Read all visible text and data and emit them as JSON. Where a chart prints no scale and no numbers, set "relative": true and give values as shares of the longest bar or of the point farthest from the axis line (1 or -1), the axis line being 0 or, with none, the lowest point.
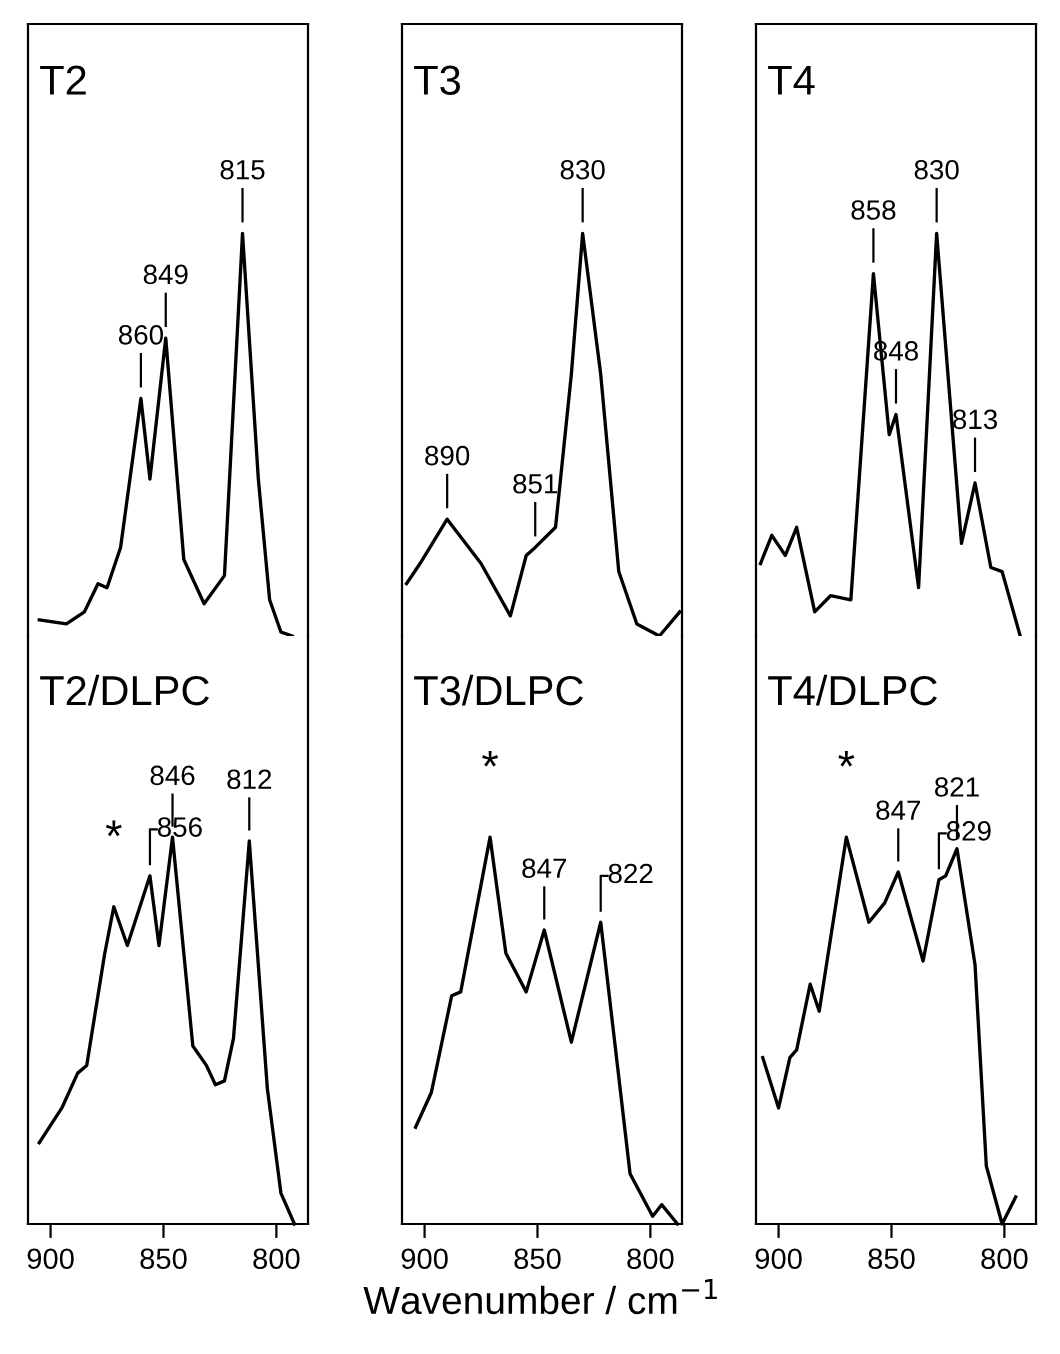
{
  "chart_data": [
    {
      "type": "line",
      "title": "T2",
      "relative": true,
      "xlim": [
        910,
        786
      ],
      "tick_labels": false,
      "series": [
        {
          "color": "#000000",
          "x": [
            905,
            893,
            885,
            879,
            875,
            869,
            860,
            856,
            849,
            841,
            832,
            823,
            815,
            808,
            803,
            798,
            793
          ],
          "values": [
            0.04,
            0.03,
            0.06,
            0.13,
            0.12,
            0.22,
            0.59,
            0.39,
            0.74,
            0.19,
            0.08,
            0.15,
            1,
            0.39,
            0.09,
            0.01,
            0
          ]
        }
      ],
      "annotations": [
        {
          "text": "860",
          "x": 860,
          "y": 0.59
        },
        {
          "text": "849",
          "x": 849,
          "y": 0.74
        },
        {
          "text": "815",
          "x": 815,
          "y": 1
        }
      ]
    },
    {
      "type": "line",
      "title": "T3",
      "relative": true,
      "xlim": [
        910,
        786
      ],
      "tick_labels": false,
      "series": [
        {
          "color": "#000000",
          "x": [
            908,
            902,
            890,
            875,
            862,
            855,
            851,
            842,
            835,
            830,
            822,
            814,
            806,
            796,
            787
          ],
          "values": [
            0.13,
            0.18,
            0.29,
            0.18,
            0.05,
            0.2,
            0.22,
            0.27,
            0.65,
            1,
            0.65,
            0.16,
            0.03,
            0,
            0.06
          ]
        }
      ],
      "annotations": [
        {
          "text": "890",
          "x": 890,
          "y": 0.29
        },
        {
          "text": "851",
          "x": 851,
          "y": 0.22
        },
        {
          "text": "830",
          "x": 830,
          "y": 1
        }
      ]
    },
    {
      "type": "line",
      "title": "T4",
      "relative": true,
      "xlim": [
        910,
        786
      ],
      "tick_labels": false,
      "series": [
        {
          "color": "#000000",
          "x": [
            908,
            903,
            897,
            892,
            884,
            877,
            868,
            858,
            851,
            848,
            838,
            830,
            819,
            813,
            806,
            801,
            793
          ],
          "values": [
            0.18,
            0.25,
            0.2,
            0.27,
            0.06,
            0.1,
            0.09,
            0.9,
            0.5,
            0.55,
            0.12,
            1,
            0.23,
            0.38,
            0.17,
            0.16,
            0
          ]
        }
      ],
      "annotations": [
        {
          "text": "858",
          "x": 858,
          "y": 0.9
        },
        {
          "text": "848",
          "x": 848,
          "y": 0.55
        },
        {
          "text": "830",
          "x": 830,
          "y": 1
        },
        {
          "text": "813",
          "x": 813,
          "y": 0.38
        }
      ]
    },
    {
      "type": "line",
      "title": "T2/DLPC",
      "relative": true,
      "xlim": [
        910,
        786
      ],
      "xticks": [
        900,
        850,
        800
      ],
      "tick_labels": "x",
      "series": [
        {
          "color": "#000000",
          "x": [
            905,
            895,
            888,
            884,
            876,
            872,
            866,
            856,
            852,
            846,
            837,
            831,
            827,
            823,
            819,
            812,
            804,
            798,
            792
          ],
          "values": [
            0.21,
            0.3,
            0.39,
            0.41,
            0.7,
            0.82,
            0.72,
            0.9,
            0.72,
            1,
            0.46,
            0.41,
            0.36,
            0.37,
            0.48,
            0.99,
            0.35,
            0.08,
            0
          ]
        }
      ],
      "annotations": [
        {
          "text": "*",
          "x": 872,
          "y": 0.82
        },
        {
          "text": "856",
          "x": 856,
          "y": 0.9
        },
        {
          "text": "846",
          "x": 846,
          "y": 1
        },
        {
          "text": "812",
          "x": 812,
          "y": 0.99
        }
      ]
    },
    {
      "type": "line",
      "title": "T3/DLPC",
      "relative": true,
      "xlim": [
        910,
        786
      ],
      "xticks": [
        900,
        850,
        800
      ],
      "tick_labels": "x",
      "xlabel": "Wavenumber / cm$^{−1}$",
      "series": [
        {
          "color": "#000000",
          "x": [
            904,
            897,
            888,
            884,
            871,
            864,
            855,
            847,
            835,
            822,
            809,
            799,
            795,
            788
          ],
          "values": [
            0.25,
            0.34,
            0.59,
            0.6,
            1,
            0.7,
            0.6,
            0.76,
            0.47,
            0.78,
            0.13,
            0.02,
            0.05,
            0
          ]
        }
      ],
      "annotations": [
        {
          "text": "*",
          "x": 871,
          "y": 1
        },
        {
          "text": "847",
          "x": 847,
          "y": 0.76
        },
        {
          "text": "822",
          "x": 822,
          "y": 0.78
        }
      ]
    },
    {
      "type": "line",
      "title": "T4/DLPC",
      "relative": true,
      "xlim": [
        910,
        786
      ],
      "xticks": [
        900,
        850,
        800
      ],
      "tick_labels": "x",
      "series": [
        {
          "color": "#000000",
          "x": [
            907,
            900,
            895,
            892,
            886,
            882,
            870,
            860,
            853,
            847,
            836,
            829,
            826,
            821,
            813,
            808,
            801,
            795
          ],
          "values": [
            0.43,
            0.3,
            0.43,
            0.45,
            0.62,
            0.55,
            1,
            0.78,
            0.83,
            0.91,
            0.68,
            0.89,
            0.9,
            0.97,
            0.67,
            0.15,
            0,
            0.07
          ]
        }
      ],
      "annotations": [
        {
          "text": "*",
          "x": 870,
          "y": 1
        },
        {
          "text": "847",
          "x": 847,
          "y": 0.91
        },
        {
          "text": "829",
          "x": 829,
          "y": 0.89
        },
        {
          "text": "821",
          "x": 821,
          "y": 0.97
        }
      ]
    }
  ]
}
